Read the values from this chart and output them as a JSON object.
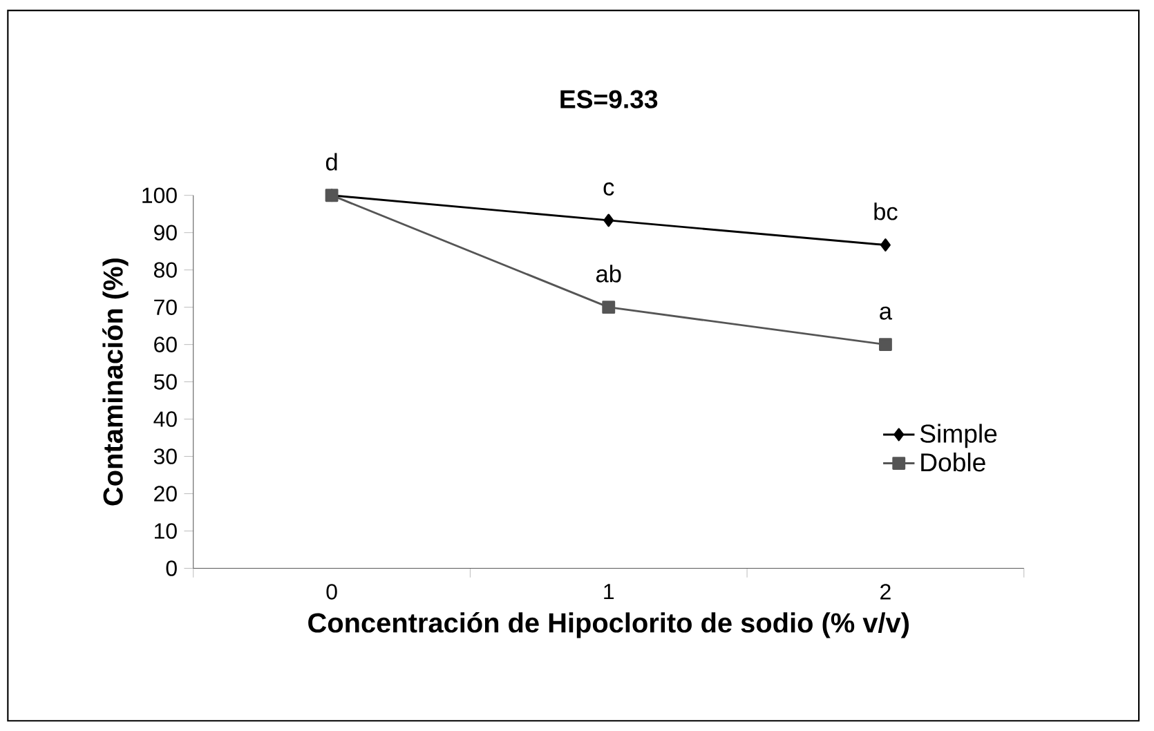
{
  "chart_data": {
    "type": "line",
    "title": "ES=9.33",
    "xlabel": "Concentración de Hipoclorito de sodio (% v/v)",
    "ylabel": "Contaminación (%)",
    "categories": [
      "0",
      "1",
      "2"
    ],
    "series": [
      {
        "name": "Simple",
        "color": "#000000",
        "marker": "diamond",
        "values": [
          100,
          93.3,
          86.7
        ]
      },
      {
        "name": "Doble",
        "color": "#555555",
        "marker": "square",
        "values": [
          100,
          70,
          60
        ]
      }
    ],
    "ylim": [
      0,
      100
    ],
    "yticks": [
      0,
      10,
      20,
      30,
      40,
      50,
      60,
      70,
      80,
      90,
      100
    ],
    "grid": false,
    "legend": "right",
    "line_style": "solid",
    "annotations": [
      {
        "text": "d",
        "x": "0",
        "y": 100
      },
      {
        "text": "c",
        "x": "1",
        "y": 93.3
      },
      {
        "text": "bc",
        "x": "2",
        "y": 86.7
      },
      {
        "text": "ab",
        "x": "1",
        "y": 70
      },
      {
        "text": "a",
        "x": "2",
        "y": 60
      }
    ]
  }
}
